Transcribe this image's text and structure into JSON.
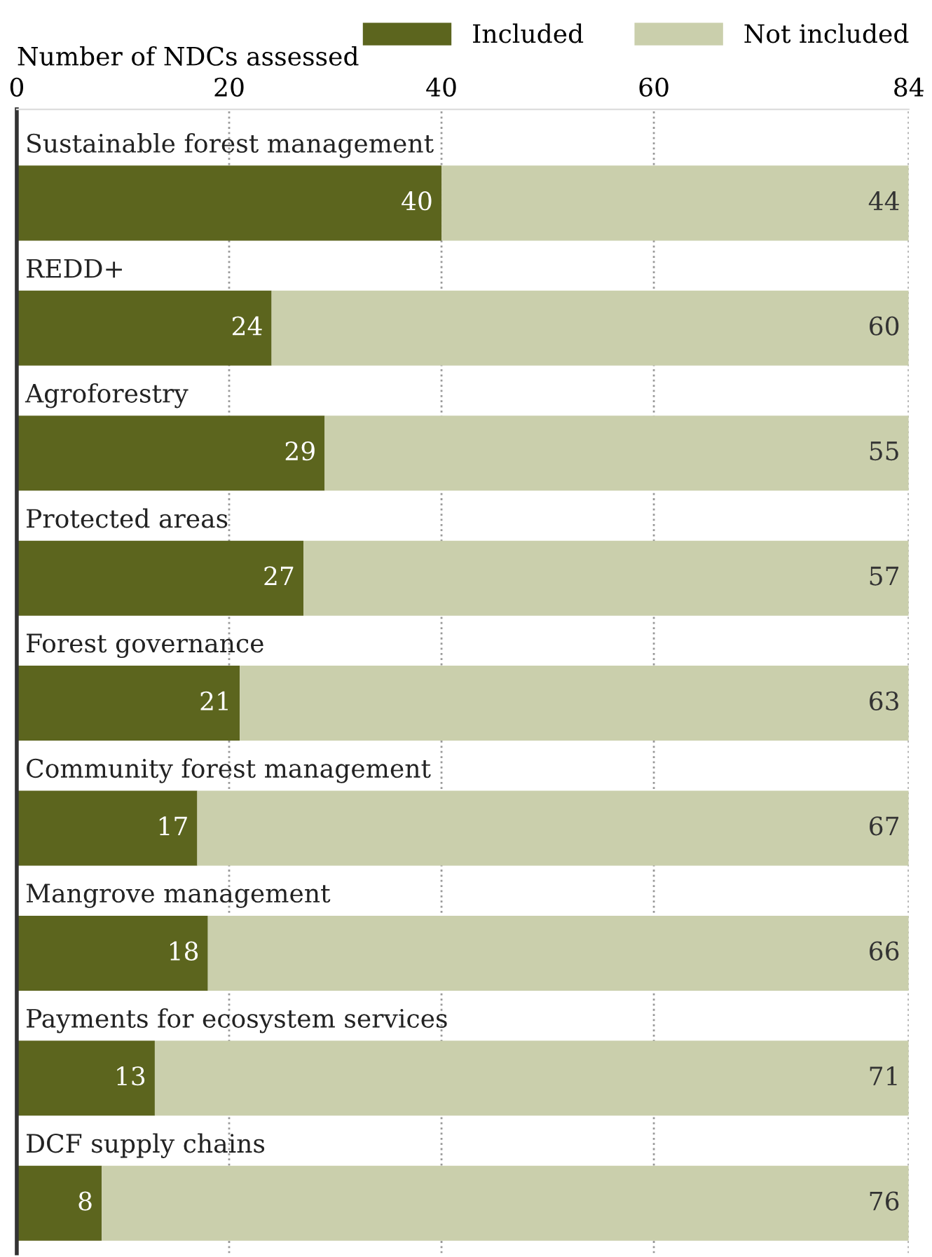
{
  "chart_data": {
    "type": "bar",
    "orientation": "horizontal",
    "stacked": true,
    "xlabel": "Number of NDCs assessed",
    "categories": [
      "Sustainable forest management",
      "REDD+",
      "Agroforestry",
      "Protected areas",
      "Forest governance",
      "Community forest management",
      "Mangrove management",
      "Payments for ecosystem services",
      "DCF supply chains"
    ],
    "series": [
      {
        "name": "Included",
        "color": "#5c651e",
        "values": [
          40,
          24,
          29,
          27,
          21,
          17,
          18,
          13,
          8
        ]
      },
      {
        "name": "Not included",
        "color": "#cacfac",
        "values": [
          44,
          60,
          55,
          57,
          63,
          67,
          66,
          71,
          76
        ]
      }
    ],
    "xlim": [
      0,
      84
    ],
    "xticks": [
      0,
      20,
      40,
      60,
      84
    ],
    "grid": "x",
    "legend": "top right",
    "data_labels": true
  }
}
